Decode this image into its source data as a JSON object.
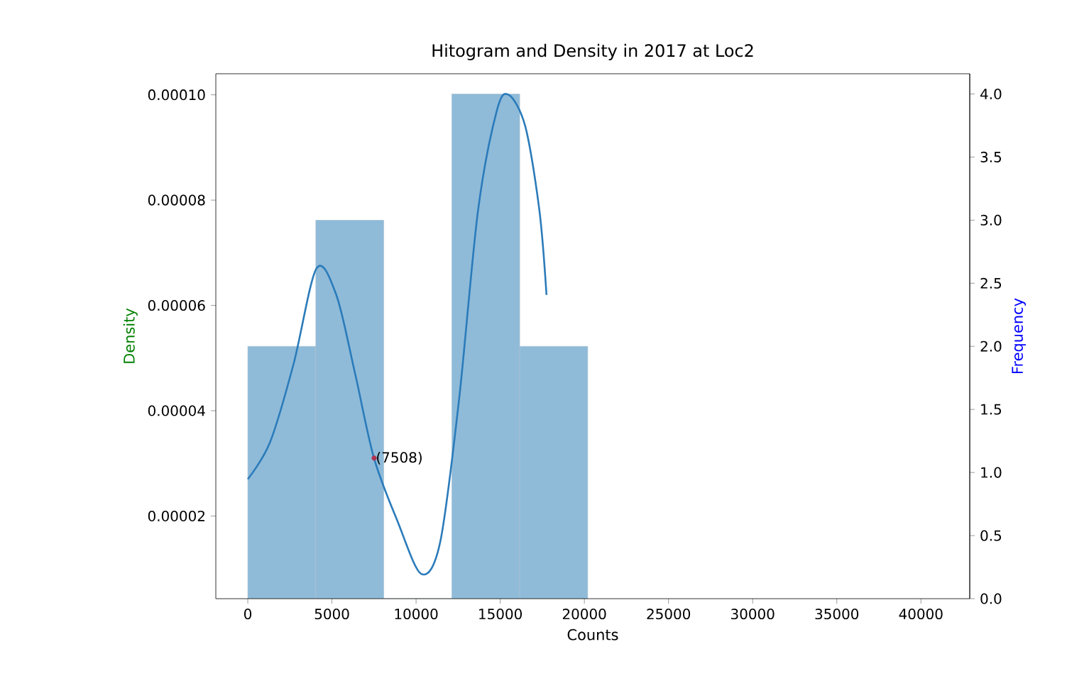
{
  "chart_data": {
    "type": "histogram",
    "title": "Hitogram and Density in 2017 at Loc2",
    "xlabel": "Counts",
    "ylabel": "Density",
    "y2label": "Frequency",
    "xlim": [
      -1900,
      42900
    ],
    "xticks": [
      0,
      5000,
      10000,
      15000,
      20000,
      25000,
      30000,
      35000,
      40000
    ],
    "ylim": [
      4.3e-06,
      0.000104
    ],
    "yticks": [
      {
        "value": 2e-05,
        "label": "0.00002"
      },
      {
        "value": 4e-05,
        "label": "0.00004"
      },
      {
        "value": 6e-05,
        "label": "0.00006"
      },
      {
        "value": 8e-05,
        "label": "0.00008"
      },
      {
        "value": 0.0001,
        "label": "0.00010"
      }
    ],
    "y2lim": [
      0,
      4.16
    ],
    "y2ticks": [
      {
        "value": 0,
        "label": "0.0"
      },
      {
        "value": 0.5,
        "label": "0.5"
      },
      {
        "value": 1,
        "label": "1.0"
      },
      {
        "value": 1.5,
        "label": "1.5"
      },
      {
        "value": 2,
        "label": "2.0"
      },
      {
        "value": 2.5,
        "label": "2.5"
      },
      {
        "value": 3,
        "label": "3.0"
      },
      {
        "value": 3.5,
        "label": "3.5"
      },
      {
        "value": 4,
        "label": "4.0"
      }
    ],
    "series": [
      {
        "axis": "y2",
        "color": "#8fbbd9",
        "bins": [
          0,
          4040,
          8080,
          12120,
          16160,
          20200
        ],
        "values": [
          2,
          3,
          0,
          4,
          2
        ]
      },
      {
        "type": "line",
        "color": "#2b7bba",
        "x": [
          0,
          1320,
          2730,
          4080,
          5260,
          6380,
          7500,
          8900,
          10310,
          11430,
          12550,
          13680,
          14800,
          15500,
          16490,
          17330,
          17750
        ],
        "values": [
          2.7e-05,
          3.4e-05,
          4.9e-05,
          6.7e-05,
          6.2e-05,
          4.7e-05,
          3.1e-05,
          1.9e-05,
          9e-06,
          1.5e-05,
          4.2e-05,
          7.8e-05,
          9.7e-05,
          0.0001,
          9.4e-05,
          7.8e-05,
          6.2e-05
        ]
      },
      {
        "type": "scatter",
        "color": "#b03050",
        "x": [
          7508
        ],
        "values": [
          3.1e-05
        ]
      }
    ],
    "annotations": [
      {
        "text": "(7508)",
        "x": 7508,
        "y": 3.1e-05
      }
    ]
  }
}
